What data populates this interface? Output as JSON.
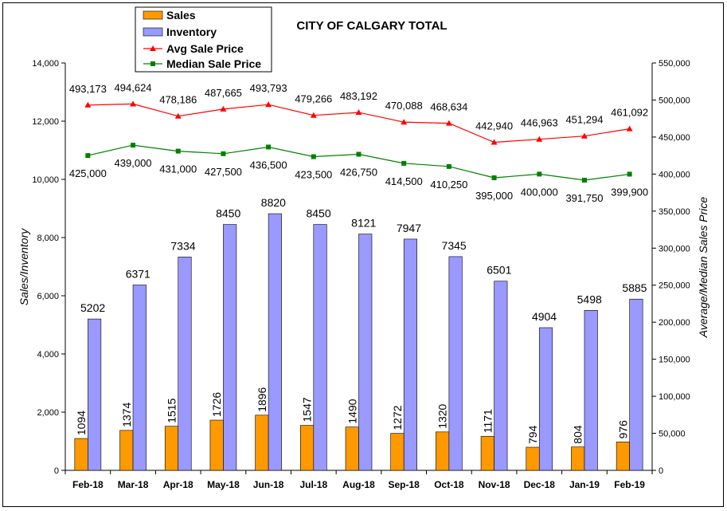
{
  "chart_data": {
    "type": "bar",
    "title": "CITY OF CALGARY TOTAL",
    "ylabel": "Sales/Inventory",
    "y2label": "Average/Median Sales Price",
    "categories": [
      "Feb-18",
      "Mar-18",
      "Apr-18",
      "May-18",
      "Jun-18",
      "Jul-18",
      "Aug-18",
      "Sep-18",
      "Oct-18",
      "Nov-18",
      "Dec-18",
      "Jan-19",
      "Feb-19"
    ],
    "ylim": [
      0,
      14000
    ],
    "yticks": [
      0,
      2000,
      4000,
      6000,
      8000,
      10000,
      12000,
      14000
    ],
    "ytick_labels": [
      "0",
      "2,000",
      "4,000",
      "6,000",
      "8,000",
      "10,000",
      "12,000",
      "14,000"
    ],
    "y2lim": [
      0,
      550000
    ],
    "y2ticks": [
      0,
      50000,
      100000,
      150000,
      200000,
      250000,
      300000,
      350000,
      400000,
      450000,
      500000,
      550000
    ],
    "y2tick_labels": [
      "0",
      "50,000",
      "100,000",
      "150,000",
      "200,000",
      "250,000",
      "300,000",
      "350,000",
      "400,000",
      "450,000",
      "500,000",
      "550,000"
    ],
    "grid": false,
    "legend_position": "top-left",
    "series": [
      {
        "name": "Sales",
        "type": "bar",
        "axis": "left",
        "color": "#FF9900",
        "values": [
          1094,
          1374,
          1515,
          1726,
          1896,
          1547,
          1490,
          1272,
          1320,
          1171,
          794,
          804,
          976
        ],
        "labels": [
          "1094",
          "1374",
          "1515",
          "1726",
          "1896",
          "1547",
          "1490",
          "1272",
          "1320",
          "1171",
          "794",
          "804",
          "976"
        ]
      },
      {
        "name": "Inventory",
        "type": "bar",
        "axis": "left",
        "color": "#9999FF",
        "values": [
          5202,
          6371,
          7334,
          8450,
          8820,
          8450,
          8121,
          7947,
          7345,
          6501,
          4904,
          5498,
          5885
        ],
        "labels": [
          "5202",
          "6371",
          "7334",
          "8450",
          "8820",
          "8450",
          "8121",
          "7947",
          "7345",
          "6501",
          "4904",
          "5498",
          "5885"
        ]
      },
      {
        "name": "Avg Sale Price",
        "type": "line",
        "axis": "right",
        "color": "#FF0000",
        "marker": "triangle",
        "values": [
          493173,
          494624,
          478186,
          487665,
          493793,
          479266,
          483192,
          470088,
          468634,
          442940,
          446963,
          451294,
          461092
        ],
        "labels": [
          "493,173",
          "494,624",
          "478,186",
          "487,665",
          "493,793",
          "479,266",
          "483,192",
          "470,088",
          "468,634",
          "442,940",
          "446,963",
          "451,294",
          "461,092"
        ]
      },
      {
        "name": "Median Sale Price",
        "type": "line",
        "axis": "right",
        "color": "#008000",
        "marker": "square",
        "values": [
          425000,
          439000,
          431000,
          427500,
          436500,
          423500,
          426750,
          414500,
          410250,
          395000,
          400000,
          391750,
          399900
        ],
        "labels": [
          "425,000",
          "439,000",
          "431,000",
          "427,500",
          "436,500",
          "423,500",
          "426,750",
          "414,500",
          "410,250",
          "395,000",
          "400,000",
          "391,750",
          "399,900"
        ]
      }
    ]
  }
}
